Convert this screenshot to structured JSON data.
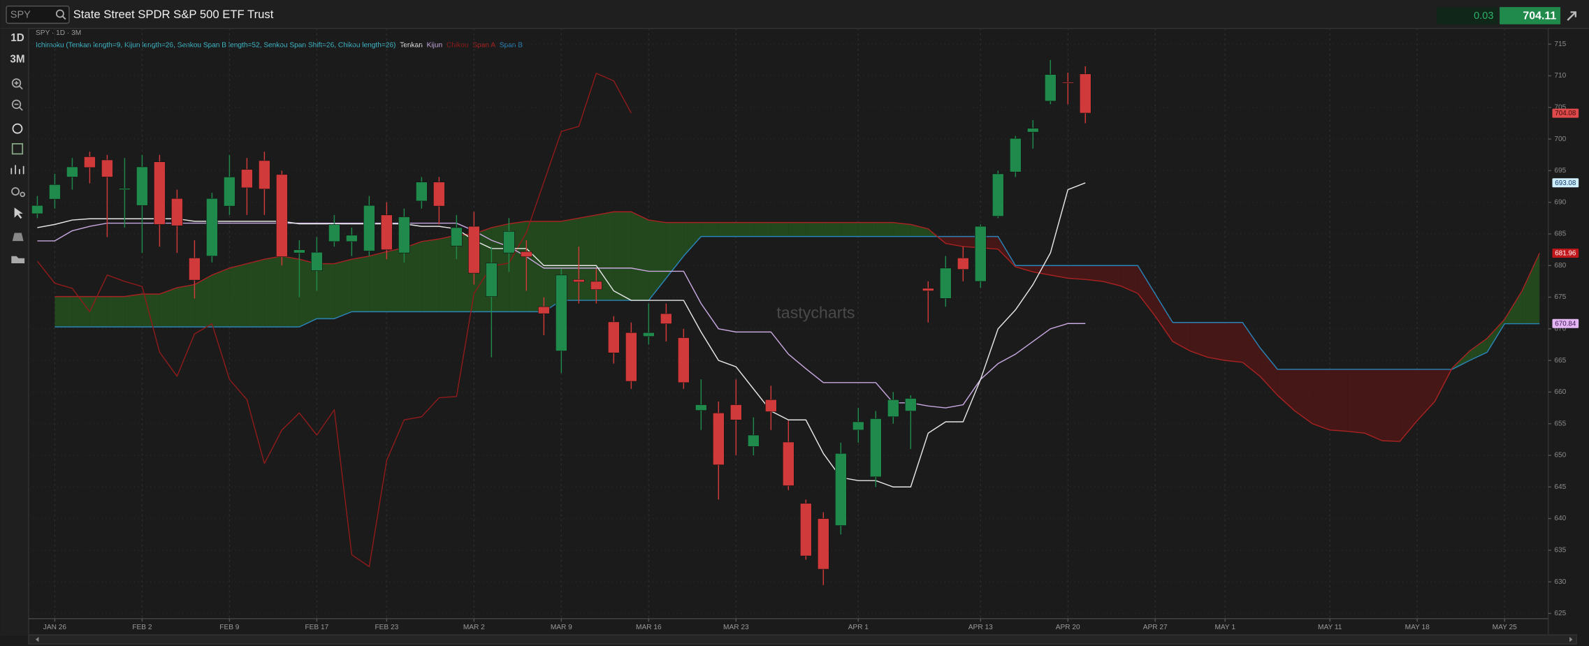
{
  "header": {
    "symbol": "SPY",
    "title": "State Street SPDR S&P 500 ETF Trust",
    "change": 0.03,
    "price": 704.11
  },
  "toolbar": {
    "intervals": [
      "1D",
      "3M"
    ]
  },
  "chart_data": {
    "type": "candlestick",
    "subtitle": "SPY · 1D · 3M",
    "indicator": "Ichimoku (Tenkan length=9, Kijun length=26, Senkou Span B length=52, Senkou Span Shift=26, Chikou length=26)",
    "watermark": "tastycharts",
    "categories": [
      null,
      "JAN 26",
      null,
      null,
      null,
      null,
      "FEB 2",
      null,
      null,
      null,
      null,
      "FEB 9",
      null,
      null,
      null,
      null,
      "FEB 17",
      null,
      null,
      null,
      "FEB 23",
      null,
      null,
      null,
      null,
      "MAR 2",
      null,
      null,
      null,
      null,
      "MAR 9",
      null,
      null,
      null,
      null,
      "MAR 16",
      null,
      null,
      null,
      null,
      "MAR 23",
      null,
      null,
      null,
      null,
      null,
      null,
      "APR 1",
      null,
      null,
      null,
      null,
      null,
      null,
      "APR 13",
      null,
      null,
      null,
      null,
      "APR 20",
      null,
      null,
      null,
      null,
      "APR 27",
      null,
      null,
      null,
      "MAY 1",
      null,
      null,
      null,
      null,
      null,
      "MAY 11",
      null,
      null,
      null,
      null,
      "MAY 18",
      null,
      null,
      null,
      null,
      "MAY 25",
      null,
      null
    ],
    "candles": {
      "up_color": "#1f8a4b",
      "down_color": "#d13a3a",
      "open": [
        688.2,
        690.5,
        694,
        697.2,
        696.7,
        692,
        689.5,
        696.4,
        690.6,
        681.2,
        681.5,
        689.4,
        695.2,
        696.6,
        694.4,
        682,
        679.2,
        683.8,
        683.8,
        682.3,
        688,
        682,
        690.2,
        693.2,
        683.1,
        686.2,
        675.1,
        682,
        682.2,
        673.5,
        666.5,
        677.8,
        677.5,
        671.1,
        669.4,
        668.8,
        672.4,
        668.6,
        657.1,
        656.7,
        658,
        651.4,
        658.8,
        652.1,
        642.4,
        640,
        638.9,
        654,
        646.6,
        656.1,
        657,
        676.4,
        674.8,
        681.2,
        677.5,
        687.8,
        694.8,
        701.1,
        706,
        709,
        710.3,
        null,
        null,
        null,
        null,
        null,
        null,
        null,
        null,
        null,
        null,
        null,
        null,
        null,
        null,
        null,
        null,
        null,
        null,
        null,
        null,
        null,
        null,
        null,
        null,
        null,
        null
      ],
      "high": [
        691,
        694.5,
        697,
        698,
        697.5,
        697,
        697.5,
        697.5,
        692,
        684,
        691.5,
        697.5,
        697,
        698,
        695,
        684,
        684.5,
        688,
        686,
        691,
        690,
        689,
        694,
        694,
        688,
        688.5,
        683,
        687.5,
        684,
        675,
        679.5,
        683,
        679.5,
        672,
        671,
        674,
        674,
        670,
        662,
        658.5,
        662,
        656,
        661,
        655.5,
        643,
        641,
        652,
        657.5,
        657,
        660,
        659.5,
        677.5,
        681.5,
        683,
        686.5,
        695,
        700.5,
        703,
        712.5,
        710.5,
        711.5,
        null,
        null,
        null,
        null,
        null,
        null,
        null,
        null,
        null,
        null,
        null,
        null,
        null,
        null,
        null,
        null,
        null,
        null,
        null,
        null,
        null,
        null,
        null,
        null,
        null,
        null
      ],
      "low": [
        687.5,
        689,
        692,
        693,
        684.5,
        686,
        682,
        683,
        682,
        674.8,
        680.5,
        688,
        688,
        688,
        680,
        675,
        676,
        683,
        681.5,
        681.5,
        681,
        680.5,
        689,
        686.5,
        681,
        677,
        665.5,
        679,
        676,
        669,
        663,
        674,
        674,
        664.5,
        660.5,
        667.5,
        668,
        660.5,
        654,
        643,
        650,
        650,
        654,
        644.5,
        633.5,
        629.5,
        637.5,
        652,
        645,
        655,
        651,
        671,
        673.5,
        677.5,
        676.5,
        687.5,
        694,
        698.5,
        705.5,
        705.5,
        702.5,
        null,
        null,
        null,
        null,
        null,
        null,
        null,
        null,
        null,
        null,
        null,
        null,
        null,
        null,
        null,
        null,
        null,
        null,
        null,
        null,
        null,
        null,
        null,
        null,
        null,
        null
      ],
      "close": [
        689.5,
        692.8,
        695.6,
        695.5,
        694,
        692.2,
        695.6,
        686.5,
        686.3,
        677.7,
        690.6,
        694,
        692.3,
        692.1,
        681.4,
        682.5,
        682.1,
        686.5,
        684.8,
        689.5,
        682.5,
        687.7,
        693.2,
        689.4,
        686,
        678.8,
        680.4,
        685.4,
        681.4,
        672.4,
        678.5,
        677.4,
        676.2,
        666.2,
        661.7,
        669.4,
        670.8,
        661.5,
        658,
        648.5,
        655.6,
        653.2,
        656.9,
        645.2,
        634.1,
        632,
        650.3,
        655.3,
        655.8,
        658.8,
        659,
        676,
        679.6,
        679.4,
        686.2,
        694.5,
        700.1,
        701.7,
        710.2,
        708.9,
        704.1,
        null,
        null,
        null,
        null,
        null,
        null,
        null,
        null,
        null,
        null,
        null,
        null,
        null,
        null,
        null,
        null,
        null,
        null,
        null,
        null,
        null,
        null,
        null,
        null,
        null,
        null
      ]
    },
    "series": [
      {
        "name": "Tenkan",
        "color": "#e6e6e6",
        "values": [
          686,
          686.5,
          687.2,
          687.4,
          687.4,
          687.4,
          687.4,
          687.4,
          687.4,
          687,
          687,
          687,
          687,
          687,
          687,
          686.6,
          686.6,
          686.6,
          686.6,
          686.6,
          686.6,
          686.6,
          686.2,
          686.2,
          685.8,
          684,
          682.7,
          682.7,
          682.7,
          680,
          680,
          680,
          680,
          676,
          674.5,
          674.5,
          674.5,
          674.5,
          669.5,
          665,
          664,
          660.5,
          657,
          655.6,
          655.6,
          650.3,
          646.5,
          646,
          646,
          645,
          645,
          653.5,
          655.3,
          655.3,
          662,
          670,
          673,
          677,
          682,
          692,
          693.08,
          null,
          null,
          null,
          null,
          null,
          null,
          null,
          null,
          null,
          null,
          null,
          null,
          null,
          null,
          null,
          null,
          null,
          null,
          null,
          null,
          null,
          null,
          null,
          null,
          null,
          null
        ]
      },
      {
        "name": "Kijun",
        "color": "#c8a8e0",
        "values": [
          683.9,
          683.9,
          685.5,
          686.2,
          686.7,
          686.7,
          686.7,
          686.7,
          686.7,
          686.7,
          686.7,
          686.7,
          686.7,
          686.7,
          686.7,
          686.7,
          686.7,
          686.7,
          686.7,
          686.7,
          686.7,
          686.7,
          686.7,
          686.7,
          686.7,
          685.5,
          684,
          683,
          681.4,
          679.6,
          679.6,
          679.6,
          679.6,
          679.6,
          679.6,
          679.1,
          679.1,
          679.1,
          674,
          670,
          669.5,
          669.5,
          669.5,
          666,
          663.7,
          661.5,
          661.5,
          661.5,
          661.5,
          658.3,
          658.3,
          657.8,
          657.5,
          658,
          662,
          664.5,
          666,
          668,
          670,
          670.84,
          670.84,
          null,
          null,
          null,
          null,
          null,
          null,
          null,
          null,
          null,
          null,
          null,
          null,
          null,
          null,
          null,
          null,
          null,
          null,
          null,
          null,
          null,
          null,
          null,
          null,
          null,
          null
        ]
      },
      {
        "name": "Chikou",
        "color": "#8e1b1b",
        "values": [
          680.7,
          677.2,
          676.4,
          672.7,
          678.5,
          677.5,
          676.7,
          666.3,
          662.5,
          669.2,
          670.8,
          662,
          658.8,
          648.7,
          654,
          656.7,
          653.2,
          657.2,
          634.3,
          632.4,
          649.2,
          655.6,
          656.1,
          659.1,
          659.3,
          675.6,
          679.9,
          680.4,
          685.2,
          693.2,
          701.2,
          702,
          710.4,
          709.2,
          704.1,
          null,
          null,
          null,
          null,
          null,
          null,
          null,
          null,
          null,
          null,
          null,
          null,
          null,
          null,
          null,
          null,
          null,
          null,
          null,
          null,
          null,
          null,
          null,
          null,
          null,
          null,
          null,
          null,
          null,
          null,
          null,
          null,
          null,
          null,
          null,
          null,
          null,
          null,
          null,
          null,
          null,
          null,
          null,
          null,
          null,
          null,
          null,
          null,
          null,
          null,
          null,
          null
        ]
      },
      {
        "name": "Span A",
        "color": "#a82222",
        "values": [
          null,
          675.1,
          675.1,
          675.1,
          675.1,
          675.1,
          675.5,
          675.5,
          676.5,
          677,
          678.5,
          679.6,
          680.3,
          681,
          681.5,
          681,
          680.3,
          680.3,
          681,
          681.5,
          682.2,
          682.8,
          683.8,
          684.2,
          684.8,
          685,
          686,
          686.6,
          687,
          687,
          687,
          687.5,
          688,
          688.5,
          688.5,
          687.2,
          686.8,
          686.8,
          686.8,
          686.8,
          686.8,
          686.8,
          686.8,
          686.8,
          686.8,
          686.8,
          686.8,
          686.8,
          686.8,
          686.8,
          686.5,
          685.8,
          683.5,
          683,
          682.8,
          682.6,
          679.8,
          679,
          678.5,
          678,
          677.8,
          677.5,
          676.8,
          675.6,
          672,
          668,
          666.5,
          665.5,
          665,
          664.7,
          662.5,
          659.5,
          657,
          655,
          654,
          653.8,
          653.5,
          652.3,
          652.2,
          655.5,
          658.5,
          663.8,
          666.5,
          668.5,
          671.5,
          676,
          681.96
        ]
      },
      {
        "name": "Span B",
        "color": "#2b84b8",
        "values": [
          null,
          670.3,
          670.3,
          670.3,
          670.3,
          670.3,
          670.3,
          670.3,
          670.3,
          670.3,
          670.3,
          670.3,
          670.3,
          670.3,
          670.3,
          670.3,
          671.6,
          671.6,
          672.7,
          672.7,
          672.7,
          672.7,
          672.7,
          672.7,
          672.7,
          672.7,
          672.7,
          672.7,
          672.7,
          672.7,
          674.5,
          674.5,
          674.5,
          674.5,
          674.5,
          674.5,
          678,
          681.5,
          684.6,
          684.6,
          684.6,
          684.6,
          684.6,
          684.6,
          684.6,
          684.6,
          684.6,
          684.6,
          684.6,
          684.6,
          684.6,
          684.6,
          684.6,
          684.6,
          684.6,
          684.6,
          680,
          680,
          680,
          680,
          680,
          680,
          680,
          680,
          675.5,
          671,
          671,
          671,
          671,
          671,
          667,
          663.6,
          663.6,
          663.6,
          663.6,
          663.6,
          663.6,
          663.6,
          663.6,
          663.6,
          663.6,
          663.6,
          665,
          666.3,
          670.8,
          670.8,
          670.8
        ]
      }
    ],
    "cloud_colors": {
      "up": "#24501f",
      "down": "#4d1616"
    },
    "ylim": [
      624.5,
      717.5
    ],
    "yticks": [
      625,
      630,
      635,
      640,
      645,
      650,
      655,
      660,
      665,
      670,
      675,
      680,
      685,
      690,
      695,
      700,
      705,
      710,
      715
    ],
    "grid": true,
    "price_tags": [
      {
        "value": 704.08,
        "color": "#e04a4a",
        "text_color": "#3a0a0a"
      },
      {
        "value": 693.08,
        "color": "#cfefff",
        "text_color": "#123a66"
      },
      {
        "value": 681.96,
        "color": "#c0171b",
        "text_color": "#ffffff"
      },
      {
        "value": 670.84,
        "color": "#e4b6f4",
        "text_color": "#3a1450"
      }
    ]
  }
}
